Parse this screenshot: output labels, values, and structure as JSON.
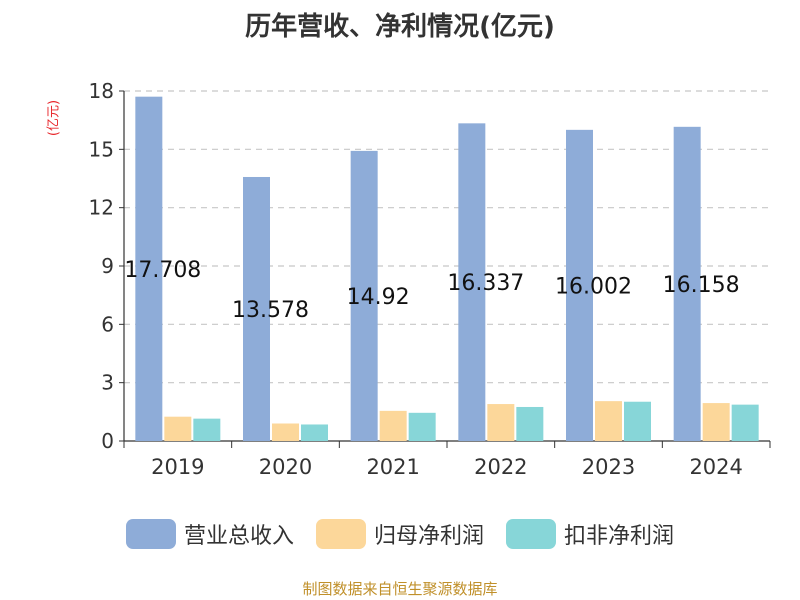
{
  "title": "历年营收、净利情况(亿元)",
  "unit_label": "(亿元)",
  "source": "制图数据来自恒生聚源数据库",
  "colors": {
    "revenue": "#8eacd8",
    "net_profit": "#fcd79a",
    "net_profit_excl": "#87d6d8",
    "unit": "#e8262b",
    "source": "#c0902a"
  },
  "chart_data": {
    "type": "bar",
    "categories": [
      "2019",
      "2020",
      "2021",
      "2022",
      "2023",
      "2024"
    ],
    "series": [
      {
        "name": "营业总收入",
        "values": [
          17.708,
          13.578,
          14.92,
          16.337,
          16.002,
          16.158
        ],
        "labels": [
          "17.708",
          "13.578",
          "14.92",
          "16.337",
          "16.002",
          "16.158"
        ]
      },
      {
        "name": "归母净利润",
        "values": [
          1.25,
          0.9,
          1.55,
          1.9,
          2.05,
          1.95
        ]
      },
      {
        "name": "扣非净利润",
        "values": [
          1.15,
          0.85,
          1.45,
          1.75,
          2.02,
          1.87
        ]
      }
    ],
    "yticks": [
      "0",
      "3",
      "6",
      "9",
      "12",
      "15",
      "18"
    ],
    "ylim": [
      0,
      18
    ],
    "grid": true,
    "legend_position": "bottom"
  }
}
